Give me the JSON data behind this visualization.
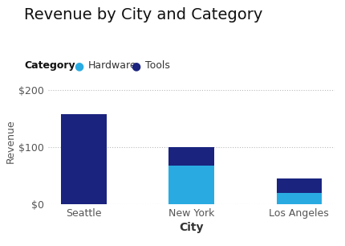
{
  "title": "Revenue by City and Category",
  "xlabel": "City",
  "ylabel": "Revenue",
  "legend_title": "Category",
  "categories": [
    "Seattle",
    "New York",
    "Los Angeles"
  ],
  "hardware_values": [
    0,
    68,
    20
  ],
  "tools_values": [
    158,
    32,
    25
  ],
  "hardware_color": "#29ABE2",
  "tools_color": "#1A237E",
  "background_color": "#FFFFFF",
  "ylim": [
    0,
    220
  ],
  "yticks": [
    0,
    100,
    200
  ],
  "ytick_labels": [
    "$0",
    "$100",
    "$200"
  ],
  "grid_color": "#BBBBBB",
  "bar_width": 0.42,
  "title_fontsize": 14,
  "axis_label_fontsize": 9,
  "tick_fontsize": 9
}
